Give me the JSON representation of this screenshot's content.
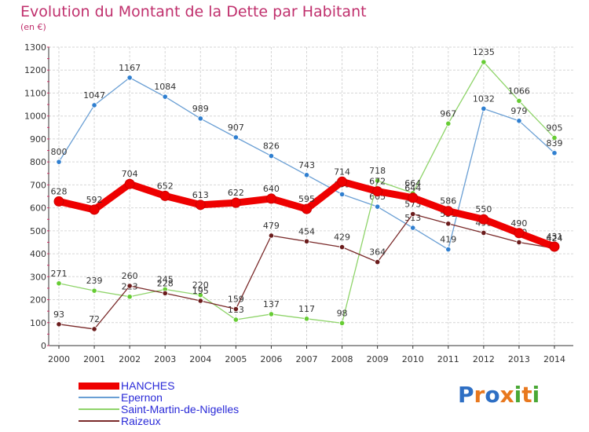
{
  "header": {
    "title": "Evolution du Montant de la Dette par Habitant",
    "subtitle": "(en €)"
  },
  "logo": {
    "text": "Proxiti",
    "colors": [
      "#2e6fc4",
      "#e8781e",
      "#2e6fc4",
      "#e8781e",
      "#4aa836",
      "#e8781e",
      "#4aa836"
    ]
  },
  "chart_data": {
    "type": "line",
    "x": [
      "2000",
      "2001",
      "2002",
      "2003",
      "2004",
      "2005",
      "2006",
      "2007",
      "2008",
      "2009",
      "2010",
      "2011",
      "2012",
      "2013",
      "2014"
    ],
    "ylim": [
      0,
      1300
    ],
    "yticks": [
      0,
      100,
      200,
      300,
      400,
      500,
      600,
      700,
      800,
      900,
      1000,
      1100,
      1200,
      1300
    ],
    "grid": true,
    "legend_position": "bottom-left",
    "series": [
      {
        "name": "Epernon",
        "color": "#6a9fd4",
        "marker_color": "#2f7fd0",
        "values": [
          800,
          1047,
          1167,
          1084,
          989,
          907,
          826,
          743,
          659,
          605,
          513,
          419,
          1032,
          979,
          839
        ],
        "labels": [
          "800",
          "1047",
          "1167",
          "1084",
          "989",
          "907",
          "826",
          "743",
          "659",
          "605",
          "513",
          "419",
          "1032",
          "979",
          "839"
        ]
      },
      {
        "name": "Saint-Martin-de-Nigelles",
        "color": "#8fd46a",
        "marker_color": "#66cc33",
        "values": [
          271,
          239,
          213,
          245,
          220,
          113,
          137,
          117,
          98,
          718,
          664,
          967,
          1235,
          1066,
          905
        ],
        "labels": [
          "271",
          "239",
          "213",
          "245",
          "220",
          "113",
          "137",
          "117",
          "98",
          "718",
          "664",
          "967",
          "1235",
          "1066",
          "905"
        ]
      },
      {
        "name": "Raizeux",
        "color": "#7a2a2a",
        "marker_color": "#6b1c1c",
        "values": [
          93,
          72,
          260,
          228,
          195,
          159,
          479,
          454,
          429,
          364,
          573,
          531,
          491,
          450,
          424
        ],
        "labels": [
          "93",
          "72",
          "260",
          "228",
          "195",
          "159",
          "479",
          "454",
          "429",
          "364",
          "573",
          "531",
          "491",
          "450",
          "424"
        ]
      },
      {
        "name": "HANCHES",
        "color": "#ee0000",
        "marker_color": "#ee0000",
        "values": [
          628,
          592,
          704,
          652,
          613,
          622,
          640,
          595,
          714,
          672,
          644,
          586,
          550,
          490,
          431
        ],
        "labels": [
          "628",
          "592",
          "704",
          "652",
          "613",
          "622",
          "640",
          "595",
          "714",
          "672",
          "644",
          "586",
          "550",
          "490",
          "431"
        ]
      }
    ]
  },
  "legend": {
    "items": [
      {
        "label": "HANCHES",
        "color": "#ee0000"
      },
      {
        "label": "Epernon",
        "color": "#6a9fd4"
      },
      {
        "label": "Saint-Martin-de-Nigelles",
        "color": "#8fd46a"
      },
      {
        "label": "Raizeux",
        "color": "#7a2a2a"
      }
    ]
  }
}
